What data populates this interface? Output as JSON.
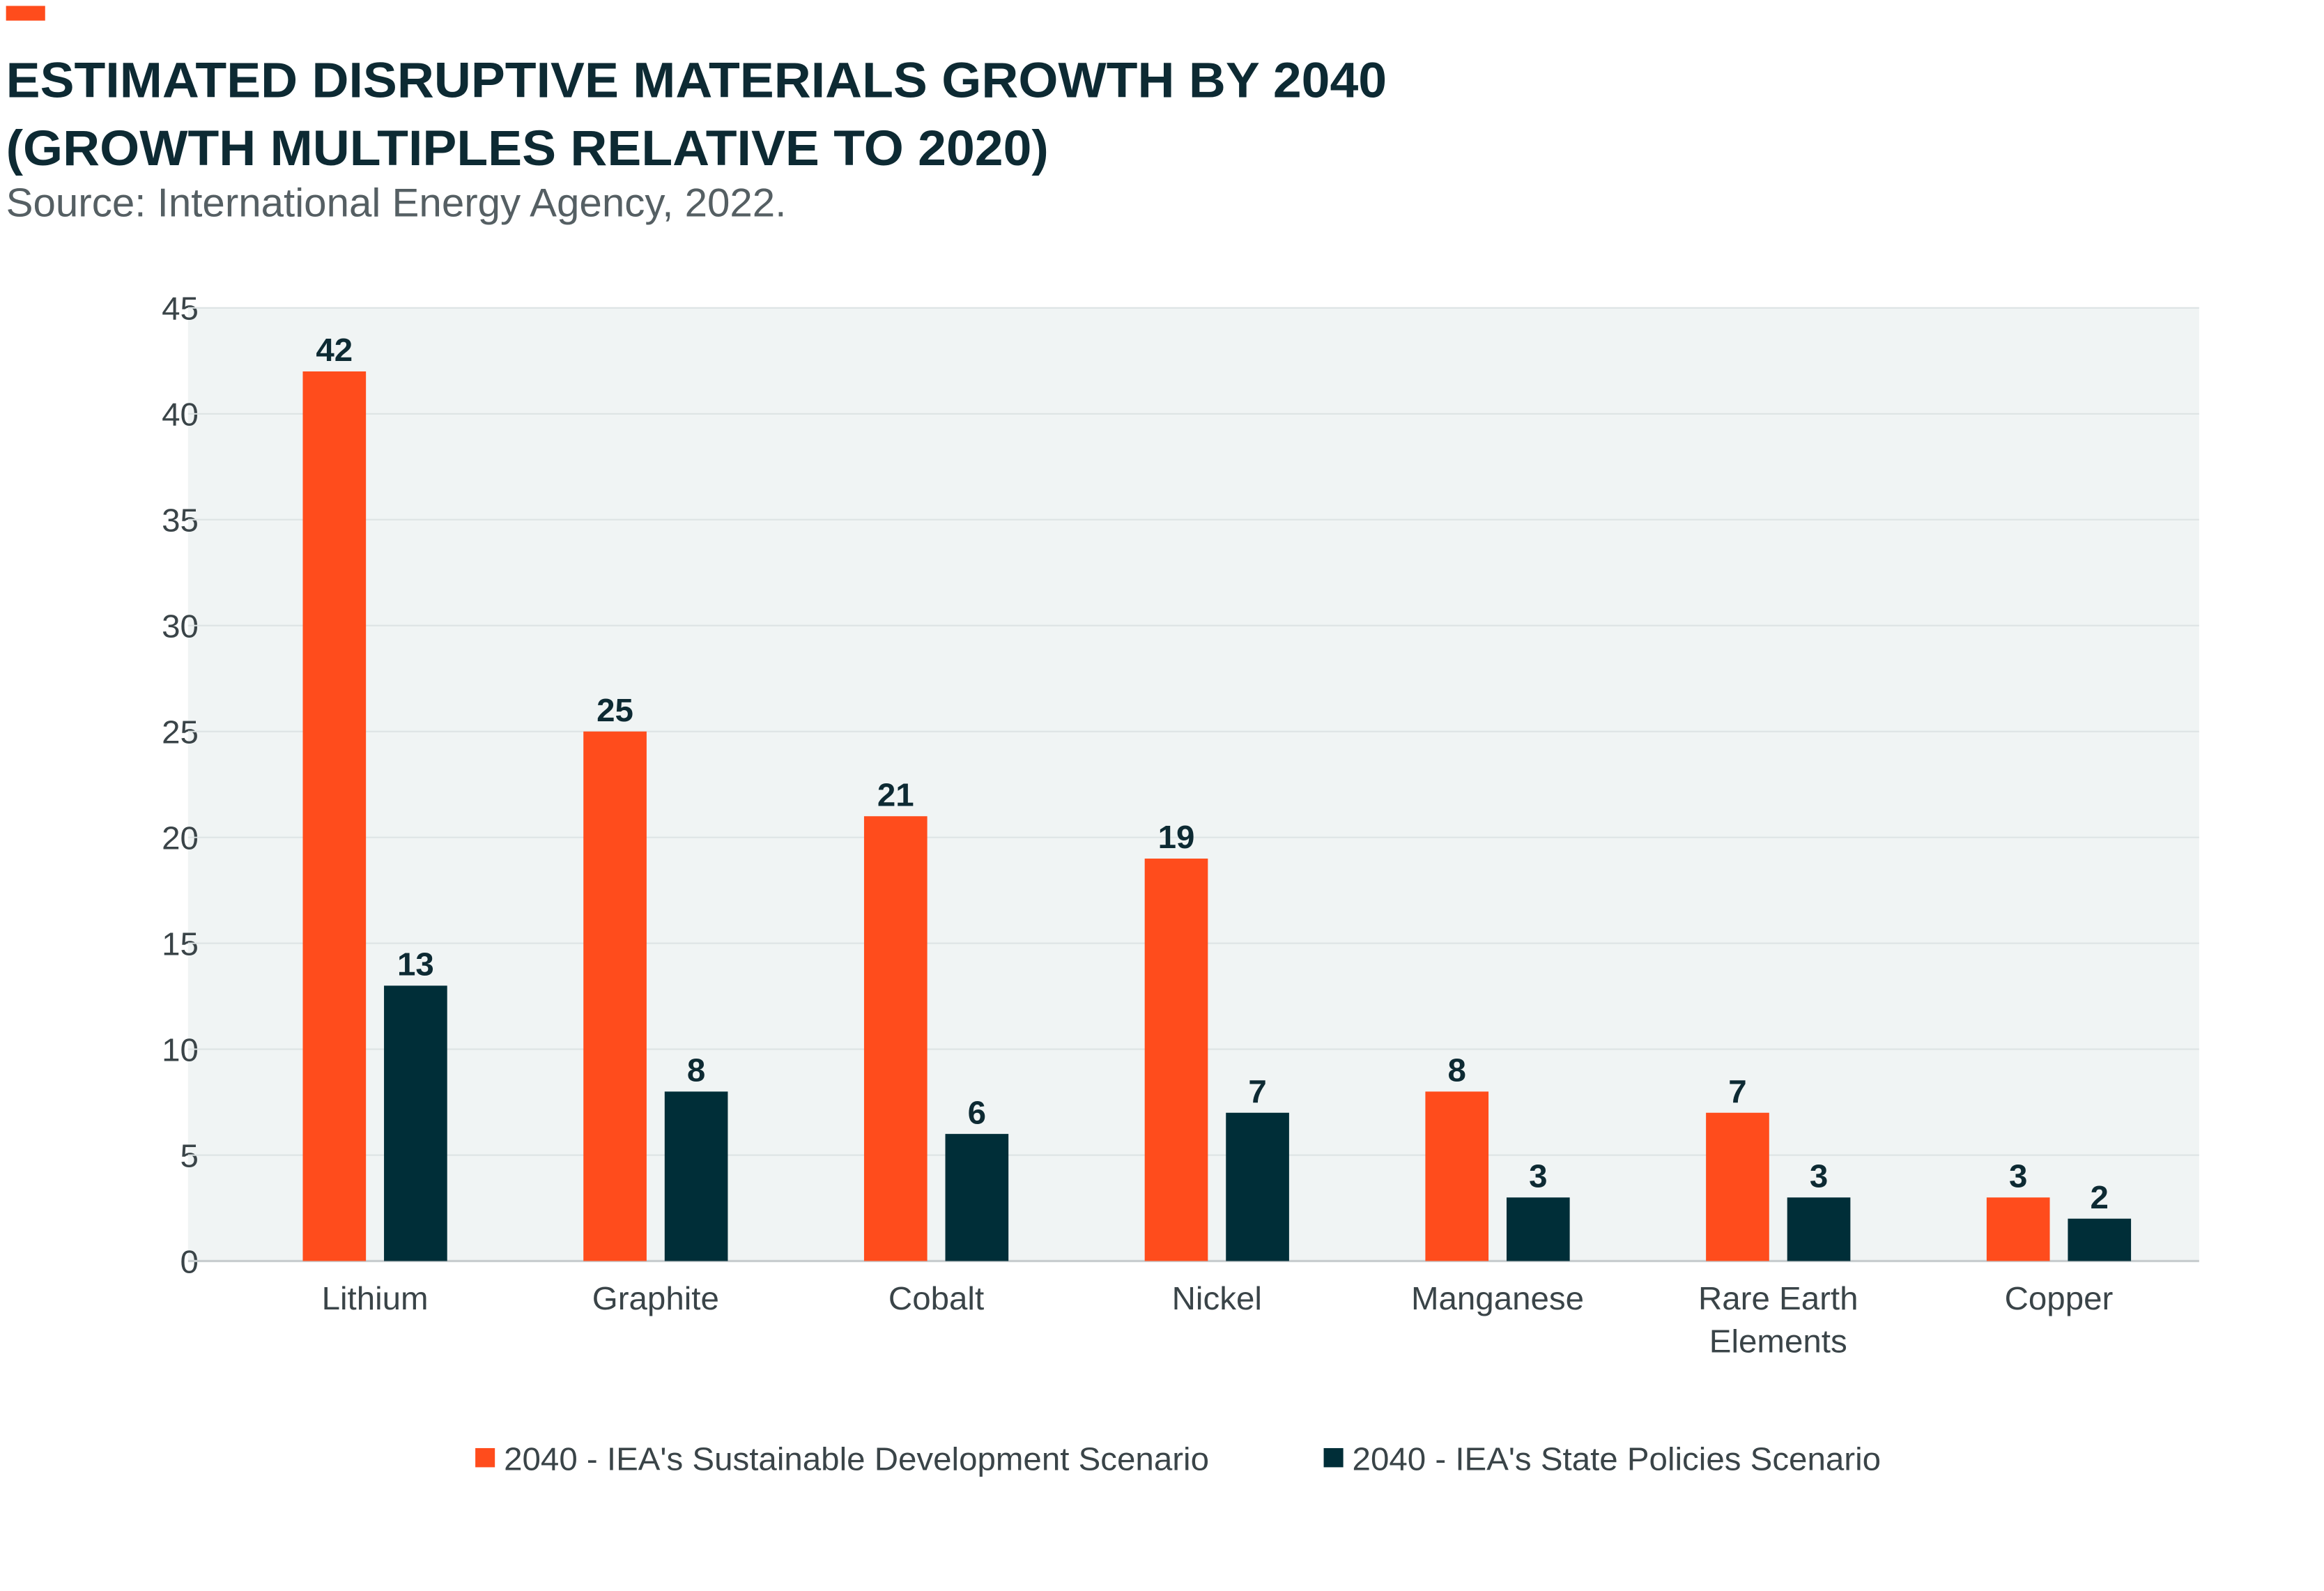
{
  "chart_data": {
    "type": "bar",
    "title": [
      "ESTIMATED DISRUPTIVE MATERIALS GROWTH BY 2040",
      "(GROWTH MULTIPLES RELATIVE TO 2020)"
    ],
    "subtitle": "Source: International Energy Agency, 2022.",
    "categories": [
      "Lithium",
      "Graphite",
      "Cobalt",
      "Nickel",
      "Manganese",
      "Rare Earth Elements",
      "Copper"
    ],
    "series": [
      {
        "name": "2040 - IEA's Sustainable Development Scenario",
        "color": "#ff4c1c",
        "values": [
          42,
          25,
          21,
          19,
          8,
          7,
          3
        ]
      },
      {
        "name": "2040 - IEA's State Policies Scenario",
        "color": "#002e38",
        "values": [
          13,
          8,
          6,
          7,
          3,
          3,
          2
        ]
      }
    ],
    "ylim": [
      0,
      45
    ],
    "yticks": [
      0,
      5,
      10,
      15,
      20,
      25,
      30,
      35,
      40,
      45
    ],
    "grid": true,
    "legend": "bottom"
  }
}
